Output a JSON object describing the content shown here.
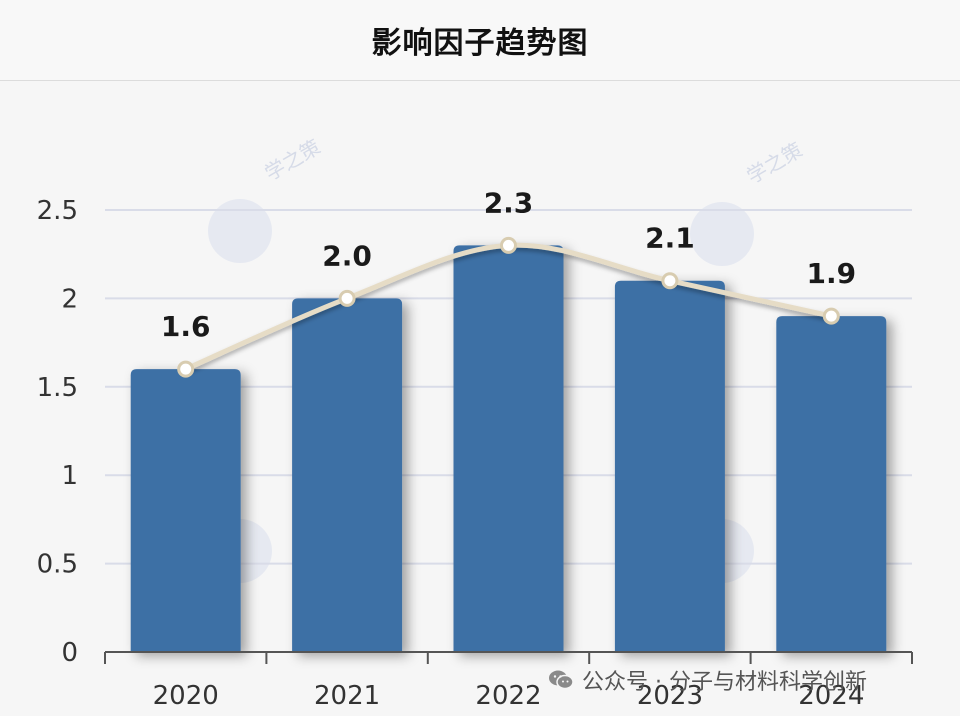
{
  "header": {
    "title": "影响因子趋势图"
  },
  "chart_data": {
    "type": "bar",
    "categories": [
      "2020",
      "2021",
      "2022",
      "2023",
      "2024"
    ],
    "values": [
      1.6,
      2.0,
      2.3,
      2.1,
      1.9
    ],
    "data_labels": [
      "1.6",
      "2.0",
      "2.3",
      "2.1",
      "1.9"
    ],
    "overlay": {
      "type": "line",
      "smooth": true,
      "values": [
        1.6,
        2.0,
        2.3,
        2.1,
        1.9
      ]
    },
    "title": "影响因子趋势图",
    "ylim": [
      0,
      2.5
    ],
    "yticks": [
      "0",
      "0.5",
      "1",
      "1.5",
      "2",
      "2.5"
    ],
    "grid": true,
    "colors": {
      "bar": "#3e6fa5",
      "line": "#e6dcc6",
      "grid": "#d9dce8",
      "axis": "#555555"
    }
  },
  "watermark": {
    "text": "学之策"
  },
  "credit": {
    "text": "公众号 · 分子与材料科学创新",
    "icon": "wechat-icon"
  }
}
